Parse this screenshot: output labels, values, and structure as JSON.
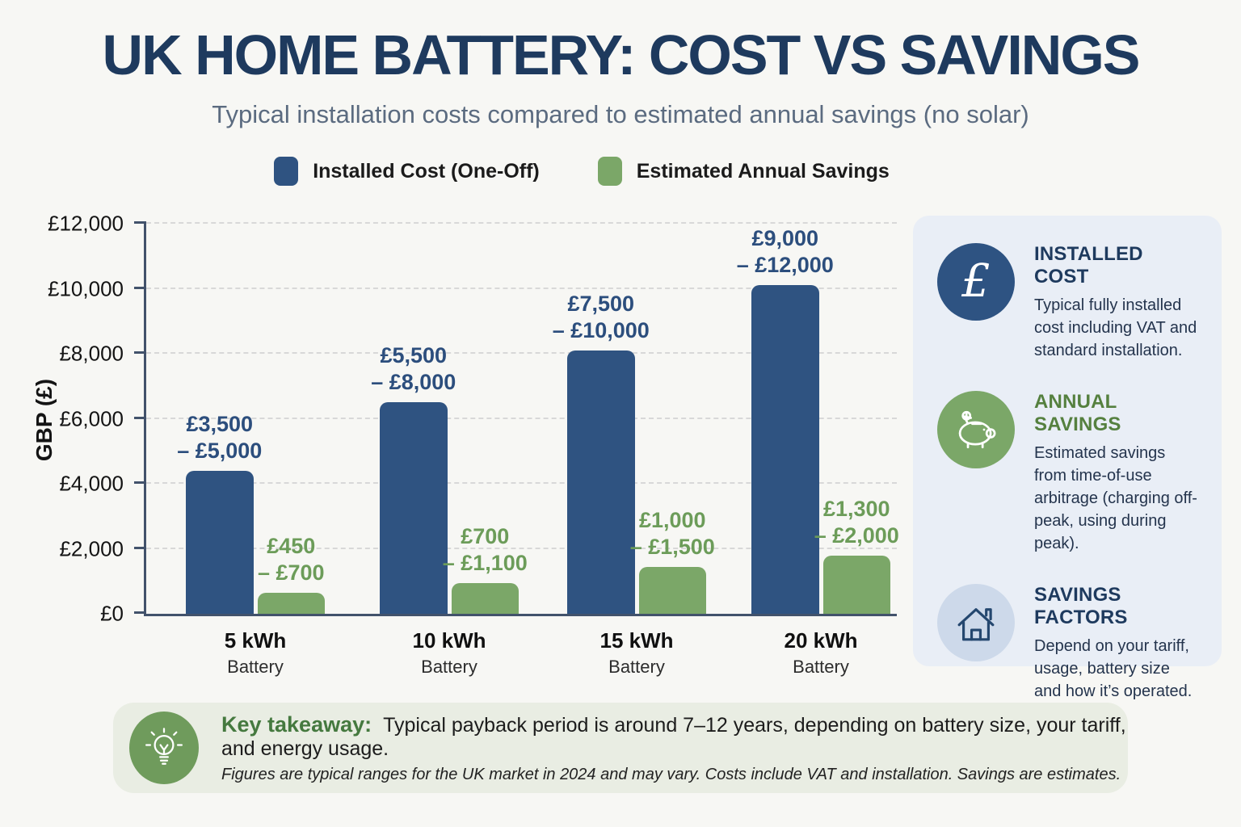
{
  "title": "UK HOME BATTERY: COST VS SAVINGS",
  "subtitle": "Typical installation costs compared to estimated annual savings (no solar)",
  "colors": {
    "navy_title": "#1E3A5E",
    "bar_blue": "#2F5381",
    "bar_green": "#7BA768",
    "green_heading": "#55803F",
    "sidebar_bg": "#E9EEF6",
    "takeaway_bg": "#E9EDE3",
    "lightblue_circle": "#CDD9EA"
  },
  "chart_data": {
    "type": "bar",
    "title": "UK Home Battery: Cost vs Savings",
    "categories": [
      "5 kWh Battery",
      "10 kWh Battery",
      "15 kWh Battery",
      "20 kWh Battery"
    ],
    "category_line1": [
      "5 kWh",
      "10 kWh",
      "15 kWh",
      "20 kWh"
    ],
    "category_line2": [
      "Battery",
      "Battery",
      "Battery",
      "Battery"
    ],
    "series": [
      {
        "name": "Installed Cost (One-Off)",
        "color": "#2F5381",
        "bar_values": [
          4400,
          6500,
          8100,
          10100
        ],
        "range_low": [
          3500,
          5500,
          7500,
          9000
        ],
        "range_high": [
          5000,
          8000,
          10000,
          12000
        ],
        "label_top": [
          "£3,500",
          "£5,500",
          "£7,500",
          "£9,000"
        ],
        "label_bottom": [
          "– £5,000",
          "– £8,000",
          "– £10,000",
          "– £12,000"
        ]
      },
      {
        "name": "Estimated Annual Savings",
        "color": "#7BA768",
        "bar_values": [
          650,
          950,
          1450,
          1800
        ],
        "range_low": [
          450,
          700,
          1000,
          1300
        ],
        "range_high": [
          700,
          1100,
          1500,
          2000
        ],
        "label_top": [
          "£450",
          "£700",
          "£1,000",
          "£1,300"
        ],
        "label_bottom": [
          "– £700",
          "– £1,100",
          "– £1,500",
          "– £2,000"
        ]
      }
    ],
    "xlabel": "",
    "ylabel": "GBP (£)",
    "ylim": [
      0,
      12000
    ],
    "yticks": [
      "£0",
      "£2,000",
      "£4,000",
      "£6,000",
      "£8,000",
      "£10,000",
      "£12,000"
    ],
    "grid": true,
    "legend_position": "top"
  },
  "sidebar": {
    "cards": [
      {
        "icon": "pound-icon",
        "title": "INSTALLED COST",
        "body": "Typical fully installed cost including VAT and standard installation."
      },
      {
        "icon": "piggy-bank-icon",
        "title": "ANNUAL SAVINGS",
        "body": "Estimated savings from time-of-use arbitrage (charging off-peak, using during peak)."
      },
      {
        "icon": "house-icon",
        "title": "SAVINGS FACTORS",
        "body": "Depend on your tariff, usage, battery size and how it’s operated."
      }
    ]
  },
  "takeaway": {
    "icon": "lightbulb-icon",
    "label": "Key takeaway:",
    "text": "Typical payback period is around 7–12 years, depending on battery size, your tariff, and energy usage.",
    "footnote": "Figures are typical ranges for the UK market in 2024 and may vary. Costs include VAT and installation. Savings are estimates."
  }
}
